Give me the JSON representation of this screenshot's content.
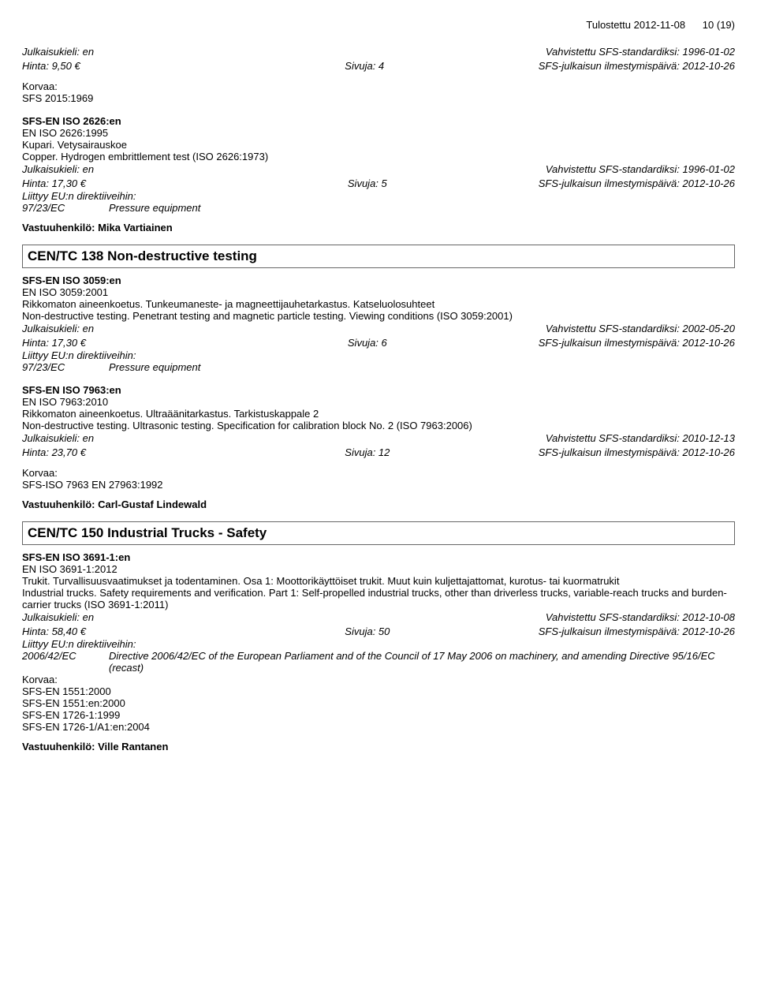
{
  "header": {
    "printed": "Tulostettu 2012-11-08",
    "page": "10 (19)"
  },
  "b1": {
    "lang_label": "Julkaisukieli: en",
    "confirmed": "Vahvistettu SFS-standardiksi: 1996-01-02",
    "price": "Hinta: 9,50 €",
    "pages": "Sivuja: 4",
    "pubdate": "SFS-julkaisun ilmestymispäivä: 2012-10-26",
    "korvaa_label": "Korvaa:",
    "korvaa_item": "SFS 2015:1969"
  },
  "b2": {
    "code": "SFS-EN ISO 2626:en",
    "ref": "EN ISO 2626:1995",
    "title_fi": "Kupari. Vetysairauskoe",
    "title_en": "Copper. Hydrogen embrittlement test (ISO 2626:1973)",
    "lang_label": "Julkaisukieli: en",
    "confirmed": "Vahvistettu SFS-standardiksi: 1996-01-02",
    "price": "Hinta: 17,30 €",
    "pages": "Sivuja: 5",
    "pubdate": "SFS-julkaisun ilmestymispäivä: 2012-10-26",
    "directive_label": "Liittyy EU:n direktiiveihin:",
    "directive_code": "97/23/EC",
    "directive_text": "Pressure equipment",
    "responsible": "Vastuuhenkilö: Mika Vartiainen"
  },
  "s1": {
    "title": "CEN/TC 138 Non-destructive testing"
  },
  "b3": {
    "code": "SFS-EN ISO 3059:en",
    "ref": "EN ISO 3059:2001",
    "title_fi": "Rikkomaton aineenkoetus. Tunkeumaneste- ja magneettijauhetarkastus. Katseluolosuhteet",
    "title_en": "Non-destructive testing. Penetrant testing and magnetic particle testing. Viewing conditions (ISO 3059:2001)",
    "lang_label": "Julkaisukieli: en",
    "confirmed": "Vahvistettu SFS-standardiksi: 2002-05-20",
    "price": "Hinta: 17,30 €",
    "pages": "Sivuja: 6",
    "pubdate": "SFS-julkaisun ilmestymispäivä: 2012-10-26",
    "directive_label": "Liittyy EU:n direktiiveihin:",
    "directive_code": "97/23/EC",
    "directive_text": "Pressure equipment"
  },
  "b4": {
    "code": "SFS-EN ISO 7963:en",
    "ref": "EN ISO 7963:2010",
    "title_fi": "Rikkomaton aineenkoetus. Ultraäänitarkastus. Tarkistuskappale 2",
    "title_en": "Non-destructive testing. Ultrasonic testing. Specification for calibration block No. 2 (ISO 7963:2006)",
    "lang_label": "Julkaisukieli: en",
    "confirmed": "Vahvistettu SFS-standardiksi: 2010-12-13",
    "price": "Hinta: 23,70 €",
    "pages": "Sivuja: 12",
    "pubdate": "SFS-julkaisun ilmestymispäivä: 2012-10-26",
    "korvaa_label": "Korvaa:",
    "korvaa_item": "SFS-ISO 7963 EN 27963:1992",
    "responsible": "Vastuuhenkilö: Carl-Gustaf Lindewald"
  },
  "s2": {
    "title": "CEN/TC 150 Industrial Trucks - Safety"
  },
  "b5": {
    "code": "SFS-EN ISO 3691-1:en",
    "ref": "EN ISO 3691-1:2012",
    "title_fi": "Trukit. Turvallisuusvaatimukset ja todentaminen. Osa 1: Moottorikäyttöiset trukit. Muut kuin kuljettajattomat, kurotus- tai kuormatrukit",
    "title_en": "Industrial trucks. Safety requirements and verification. Part 1: Self-propelled industrial trucks, other than driverless trucks, variable-reach trucks and burden-carrier trucks (ISO 3691-1:2011)",
    "lang_label": "Julkaisukieli: en",
    "confirmed": "Vahvistettu SFS-standardiksi: 2012-10-08",
    "price": "Hinta: 58,40 €",
    "pages": "Sivuja: 50",
    "pubdate": "SFS-julkaisun ilmestymispäivä: 2012-10-26",
    "directive_label": "Liittyy EU:n direktiiveihin:",
    "directive_code": "2006/42/EC",
    "directive_text": "Directive 2006/42/EC of the European Parliament and of the Council of 17 May 2006 on machinery, and amending Directive 95/16/EC (recast)",
    "korvaa_label": "Korvaa:",
    "korvaa_1": "SFS-EN 1551:2000",
    "korvaa_2": "SFS-EN 1551:en:2000",
    "korvaa_3": "SFS-EN 1726-1:1999",
    "korvaa_4": "SFS-EN 1726-1/A1:en:2004",
    "responsible": "Vastuuhenkilö: Ville Rantanen"
  }
}
